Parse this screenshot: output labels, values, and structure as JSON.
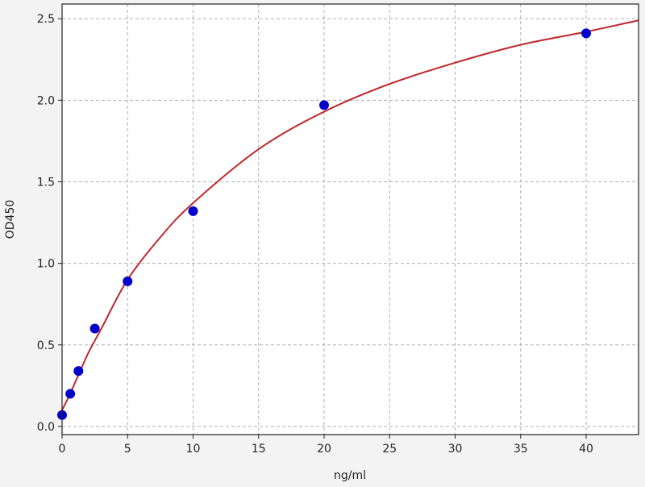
{
  "chart_data": {
    "type": "scatter",
    "title": "",
    "xlabel": "ng/ml",
    "ylabel": "OD450",
    "xlim": [
      0,
      44
    ],
    "ylim": [
      -0.05,
      2.59
    ],
    "xticks": [
      0,
      5,
      10,
      15,
      20,
      25,
      30,
      35,
      40
    ],
    "yticks": [
      0.0,
      0.5,
      1.0,
      1.5,
      2.0,
      2.5
    ],
    "xtick_labels": [
      "0",
      "5",
      "10",
      "15",
      "20",
      "25",
      "30",
      "35",
      "40"
    ],
    "ytick_labels": [
      "0.0",
      "0.5",
      "1.0",
      "1.5",
      "2.0",
      "2.5"
    ],
    "grid": true,
    "series": [
      {
        "kind": "points",
        "color": "#0000cc",
        "x": [
          0,
          0.625,
          1.25,
          2.5,
          5,
          10,
          20,
          40
        ],
        "y": [
          0.07,
          0.2,
          0.34,
          0.6,
          0.89,
          1.32,
          1.97,
          2.41
        ]
      },
      {
        "kind": "fit-curve",
        "color": "#c0262a",
        "x": [
          0,
          0.5,
          1,
          2,
          3,
          5,
          7.5,
          10,
          15,
          20,
          25,
          30,
          35,
          40,
          44
        ],
        "y": [
          0.1,
          0.18,
          0.27,
          0.45,
          0.6,
          0.9,
          1.16,
          1.37,
          1.7,
          1.93,
          2.1,
          2.23,
          2.34,
          2.42,
          2.49
        ]
      }
    ]
  }
}
